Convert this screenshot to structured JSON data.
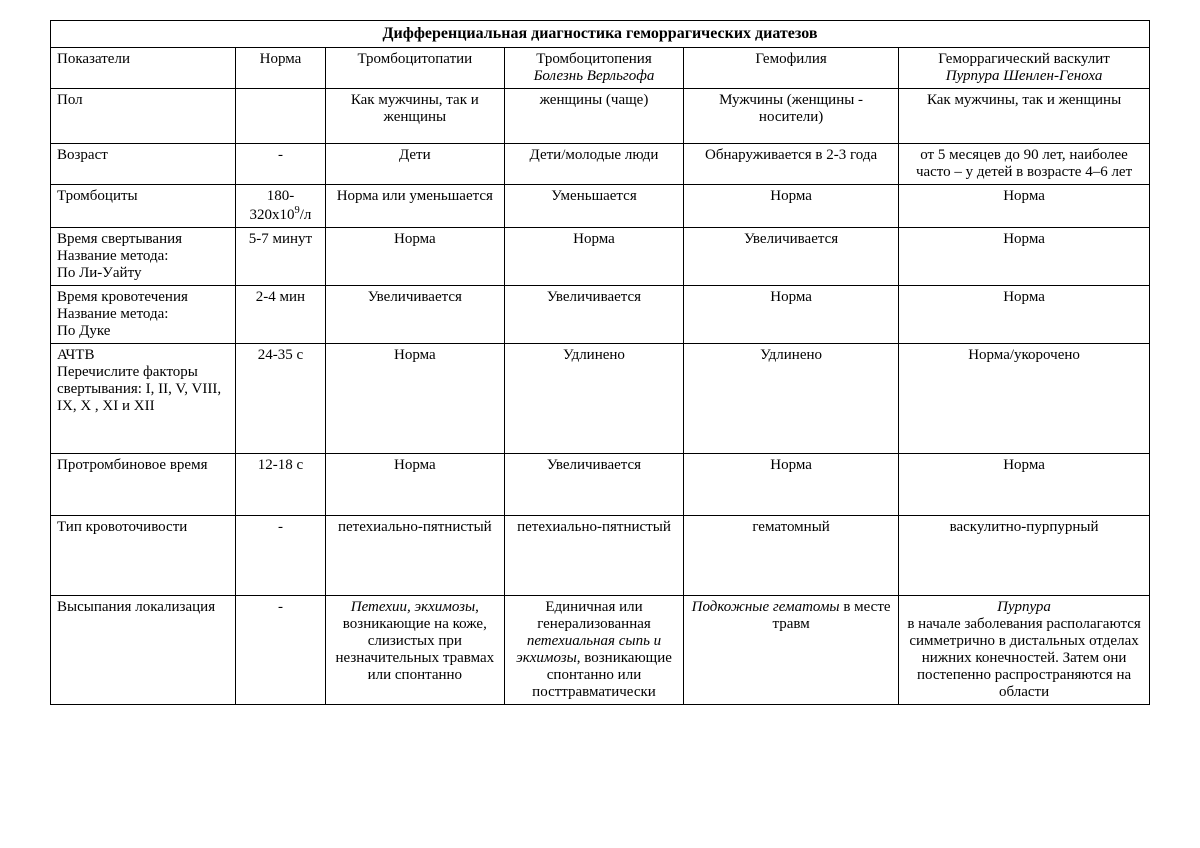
{
  "title": "Дифференциальная диагностика геморрагических диатезов",
  "headers": {
    "indicator": "Показатели",
    "norm": "Норма",
    "colA": "Тромбоцитопатии",
    "colB_line1": "Тромбоцитопения",
    "colB_line2": "Болезнь Верльгофа",
    "colC": "Гемофилия",
    "colD_line1": "Геморрагический васкулит",
    "colD_line2": "Пурпура Шенлен-Геноха"
  },
  "rows": {
    "sex": {
      "label": "Пол",
      "norm": "",
      "a": "Как мужчины, так и женщины",
      "b": "женщины (чаще)",
      "c": "Мужчины (женщины - носители)",
      "d": "Как мужчины, так и женщины"
    },
    "age": {
      "label": "Возраст",
      "norm": "-",
      "a": "Дети",
      "b": "Дети/молодые люди",
      "c": "Обнаруживается в 2-3 года",
      "d": "от 5 месяцев до 90 лет, наиболее часто – у детей в возрасте 4–6 лет"
    },
    "plt": {
      "label": "Тромбоциты",
      "norm_pre": "180-320х10",
      "norm_sup": "9",
      "norm_post": "/л",
      "a": "Норма или уменьшается",
      "b": "Уменьшается",
      "c": "Норма",
      "d": "Норма"
    },
    "clot": {
      "label_l1": "Время свертывания",
      "label_l2": "Название метода:",
      "label_l3": "По Ли-Уайту",
      "norm": "5-7 минут",
      "a": "Норма",
      "b": "Норма",
      "c": "Увеличивается",
      "d": "Норма"
    },
    "bleed": {
      "label_l1": "Время кровотечения",
      "label_l2": "Название метода:",
      "label_l3": "По Дуке",
      "norm": "2-4 мин",
      "a": "Увеличивается",
      "b": "Увеличивается",
      "c": "Норма",
      "d": "Норма"
    },
    "aptt": {
      "label_l1": "АЧТВ",
      "label_l2": "Перечислите факторы свертывания:  I, II, V, VIII, IX, X , XI и XII",
      "norm": "24-35 с",
      "a": "Норма",
      "b": "Удлинено",
      "c": "Удлинено",
      "d": "Норма/укорочено"
    },
    "pt": {
      "label": "Протромбиновое время",
      "norm": "12-18 с",
      "a": "Норма",
      "b": "Увеличивается",
      "c": "Норма",
      "d": "Норма"
    },
    "type": {
      "label": "Тип кровоточивости",
      "norm": "-",
      "a": "петехиально-пятнистый",
      "b": "петехиально-пятнистый",
      "c": "гематомный",
      "d": "васкулитно-пурпурный"
    },
    "rash": {
      "label": "Высыпания локализация",
      "norm": "-",
      "a_italic": "Петехии, экхимозы",
      "a_rest": ", возникающие на коже, слизистых при незначительных травмах или спонтанно",
      "b_pre": "Единичная или генерализованная ",
      "b_italic": "петехиальная сыпь и экхимозы",
      "b_post": ", возникающие спонтанно или посттравматически",
      "c_italic": "Подкожные гематомы",
      "c_rest": " в месте травм",
      "d_italic": "Пурпура",
      "d_rest": "в начале заболевания располагаются симметрично в дистальных отделах нижних конечностей. Затем они постепенно распространяются на области"
    }
  }
}
